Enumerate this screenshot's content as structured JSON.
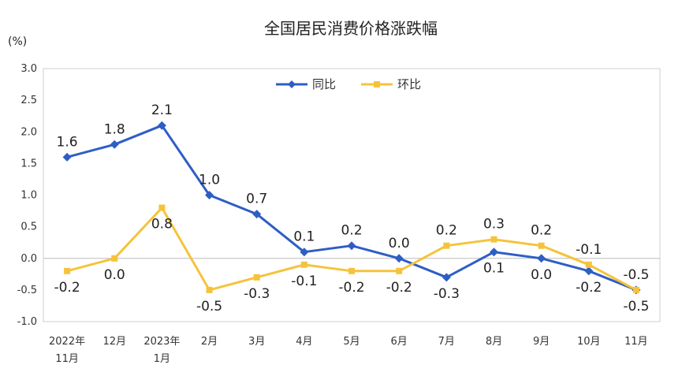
{
  "chart_data": {
    "type": "line",
    "title": "全国居民消费价格涨跌幅",
    "unit": "(%)",
    "categories": [
      [
        "2022年",
        "11月"
      ],
      [
        "12月"
      ],
      [
        "2023年",
        "1月"
      ],
      [
        "2月"
      ],
      [
        "3月"
      ],
      [
        "4月"
      ],
      [
        "5月"
      ],
      [
        "6月"
      ],
      [
        "7月"
      ],
      [
        "8月"
      ],
      [
        "9月"
      ],
      [
        "10月"
      ],
      [
        "11月"
      ]
    ],
    "yticks": [
      "3.0",
      "2.5",
      "2.0",
      "1.5",
      "1.0",
      "0.5",
      "0.0",
      "-0.5",
      "-1.0"
    ],
    "ylim": [
      -1.0,
      3.0
    ],
    "legend_position": "top-center",
    "series": [
      {
        "name": "同比",
        "color": "#2E5EC4",
        "marker": "diamond",
        "values": [
          1.6,
          1.8,
          2.1,
          1.0,
          0.7,
          0.1,
          0.2,
          0.0,
          -0.3,
          0.1,
          0.0,
          -0.2,
          -0.5
        ],
        "labels": [
          "1.6",
          "1.8",
          "2.1",
          "1.0",
          "0.7",
          "0.1",
          "0.2",
          "0.0",
          "-0.3",
          "0.1",
          "0.0",
          "-0.2",
          "-0.5"
        ]
      },
      {
        "name": "环比",
        "color": "#F5C33B",
        "marker": "square",
        "values": [
          -0.2,
          0.0,
          0.8,
          -0.5,
          -0.3,
          -0.1,
          -0.2,
          -0.2,
          0.2,
          0.3,
          0.2,
          -0.1,
          -0.5
        ],
        "labels": [
          "-0.2",
          "0.0",
          "0.8",
          "-0.5",
          "-0.3",
          "-0.1",
          "-0.2",
          "-0.2",
          "0.2",
          "0.3",
          "0.2",
          "-0.1",
          "-0.5"
        ]
      }
    ]
  }
}
